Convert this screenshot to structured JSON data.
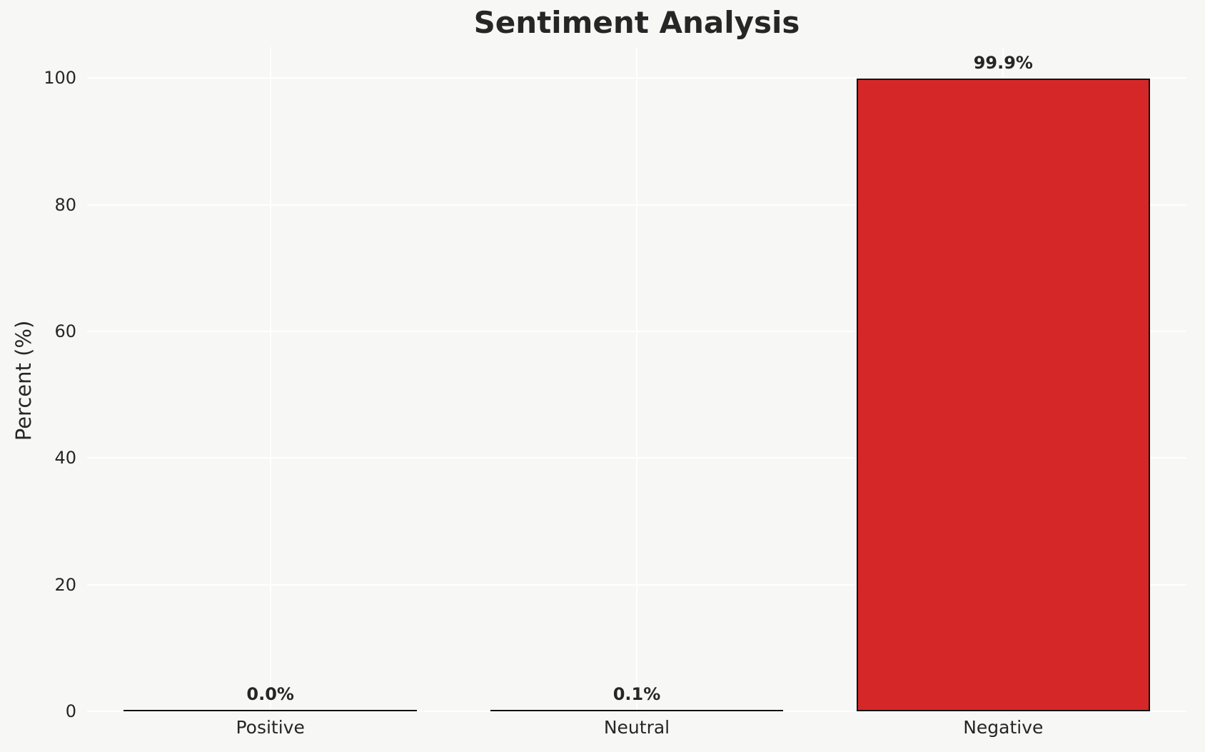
{
  "figure": {
    "background_color": "#f7f7f6",
    "grid_color": "#ffffff",
    "text_color": "#262626"
  },
  "chart_data": {
    "type": "bar",
    "title": "Sentiment Analysis",
    "xlabel": "",
    "ylabel": "Percent (%)",
    "categories": [
      "Positive",
      "Neutral",
      "Negative"
    ],
    "values": [
      0.0,
      0.1,
      99.9
    ],
    "bar_labels": [
      "0.0%",
      "0.1%",
      "99.9%"
    ],
    "bar_color": "#d62728",
    "bar_edge_color": "#0f0f0f",
    "ylim": [
      0,
      104.9
    ],
    "yticks": [
      0,
      20,
      40,
      60,
      80,
      100
    ],
    "grid": "white horizontal lines at y ticks and vertical lines at category centers",
    "legend": "none"
  }
}
